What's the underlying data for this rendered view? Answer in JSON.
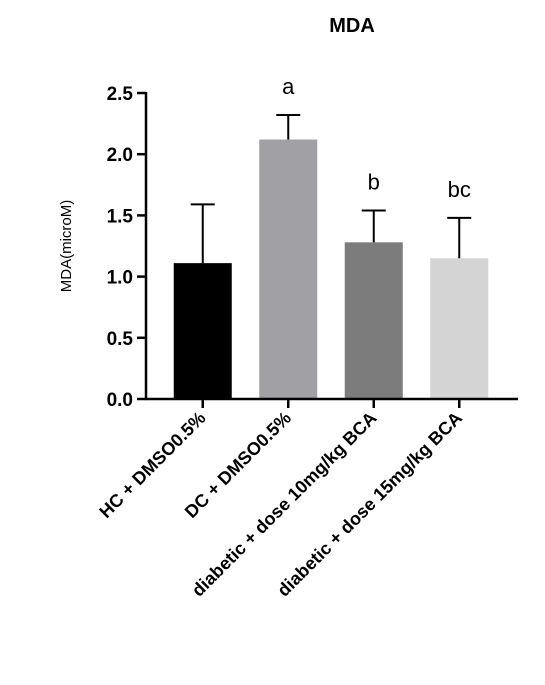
{
  "chart_data": {
    "type": "bar",
    "title": "MDA",
    "xlabel": "",
    "ylabel": "MDA(microM)",
    "ylim": [
      0,
      2.5
    ],
    "yticks": [
      "0.0",
      "0.5",
      "1.0",
      "1.5",
      "2.0",
      "2.5"
    ],
    "categories": [
      "HC + DMSO0.5%",
      "DC + DMSO0.5%",
      "diabetic + dose 10mg/kg BCA",
      "diabetic + dose 15mg/kg BCA"
    ],
    "values": [
      1.11,
      2.12,
      1.28,
      1.15
    ],
    "errors": [
      0.48,
      0.2,
      0.26,
      0.33
    ],
    "annotations": [
      "",
      "a",
      "b",
      "bc"
    ],
    "colors": [
      "#000000",
      "#a1a1a5",
      "#7c7c7c",
      "#d4d4d4"
    ],
    "grid": false,
    "legend": "none"
  }
}
